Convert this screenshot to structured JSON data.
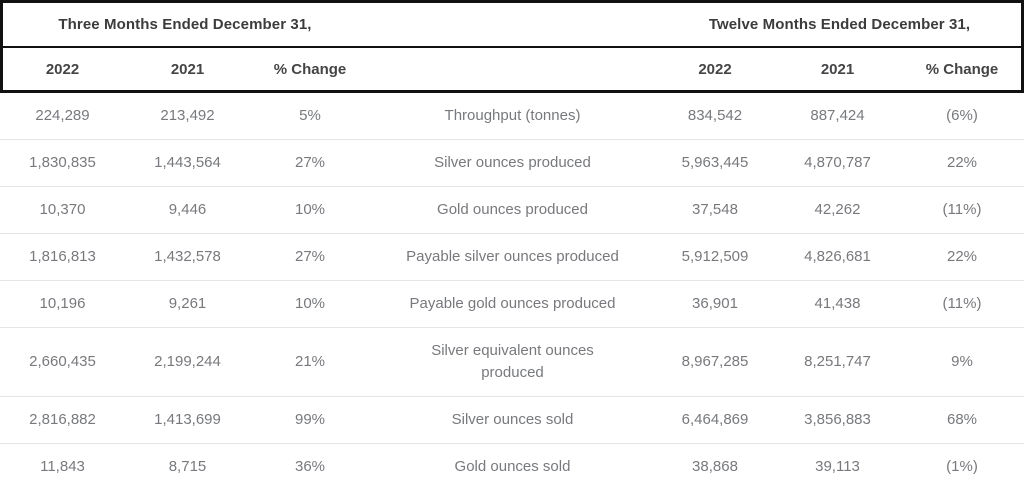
{
  "table": {
    "period_headers": {
      "three_months": "Three Months Ended December 31,",
      "twelve_months": "Twelve Months Ended December 31,"
    },
    "column_headers": {
      "left": [
        "2022",
        "2021",
        "% Change"
      ],
      "right": [
        "2022",
        "2021",
        "% Change"
      ]
    },
    "rows": [
      {
        "q_2022": "224,289",
        "q_2021": "213,492",
        "q_change": "5%",
        "metric": "Throughput (tonnes)",
        "y_2022": "834,542",
        "y_2021": "887,424",
        "y_change": "(6%)"
      },
      {
        "q_2022": "1,830,835",
        "q_2021": "1,443,564",
        "q_change": "27%",
        "metric": "Silver ounces produced",
        "y_2022": "5,963,445",
        "y_2021": "4,870,787",
        "y_change": "22%"
      },
      {
        "q_2022": "10,370",
        "q_2021": "9,446",
        "q_change": "10%",
        "metric": "Gold ounces produced",
        "y_2022": "37,548",
        "y_2021": "42,262",
        "y_change": "(11%)"
      },
      {
        "q_2022": "1,816,813",
        "q_2021": "1,432,578",
        "q_change": "27%",
        "metric": "Payable silver ounces produced",
        "y_2022": "5,912,509",
        "y_2021": "4,826,681",
        "y_change": "22%"
      },
      {
        "q_2022": "10,196",
        "q_2021": "9,261",
        "q_change": "10%",
        "metric": "Payable gold ounces produced",
        "y_2022": "36,901",
        "y_2021": "41,438",
        "y_change": "(11%)"
      },
      {
        "q_2022": "2,660,435",
        "q_2021": "2,199,244",
        "q_change": "21%",
        "metric": "Silver equivalent ounces\nproduced",
        "y_2022": "8,967,285",
        "y_2021": "8,251,747",
        "y_change": "9%"
      },
      {
        "q_2022": "2,816,882",
        "q_2021": "1,413,699",
        "q_change": "99%",
        "metric": "Silver ounces sold",
        "y_2022": "6,464,869",
        "y_2021": "3,856,883",
        "y_change": "68%"
      },
      {
        "q_2022": "11,843",
        "q_2021": "8,715",
        "q_change": "36%",
        "metric": "Gold ounces sold",
        "y_2022": "38,868",
        "y_2021": "39,113",
        "y_change": "(1%)"
      }
    ],
    "colors": {
      "header_text": "#3c3c3e",
      "body_text": "#77797d",
      "rule_black": "#111111",
      "row_divider": "#e5e5e8"
    }
  }
}
